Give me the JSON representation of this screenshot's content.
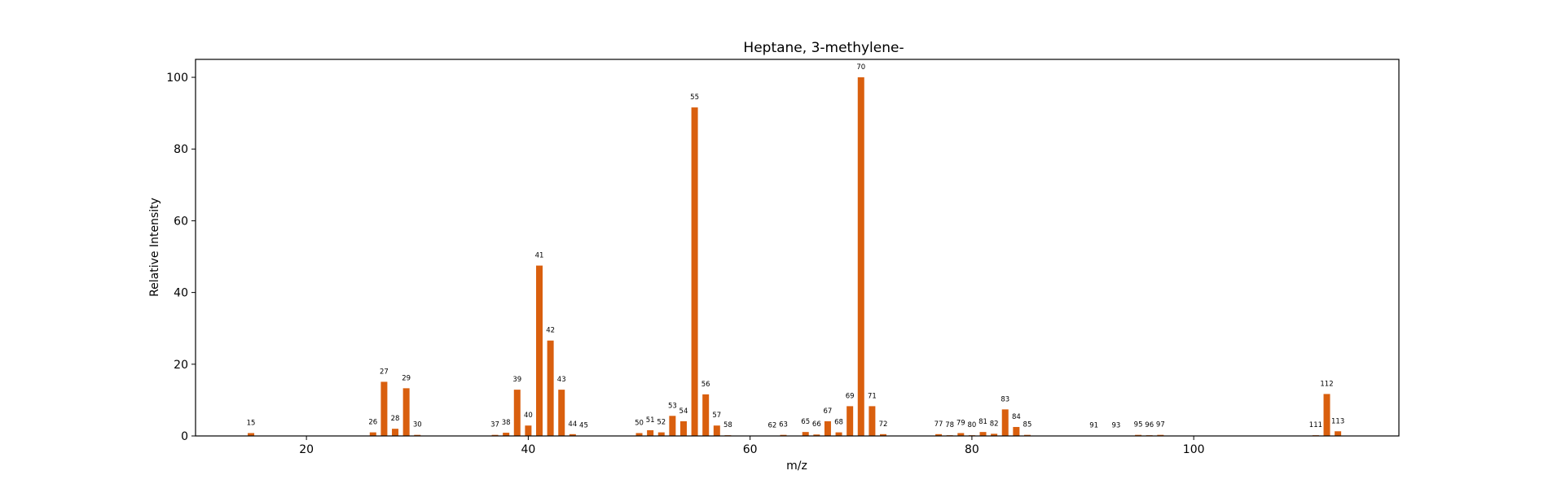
{
  "chart_data": {
    "type": "bar",
    "title": "Heptane, 3-methylene-",
    "xlabel": "m/z",
    "ylabel": "Relative Intensity",
    "xlim": [
      10,
      118.5
    ],
    "ylim": [
      0,
      105
    ],
    "xticks": [
      20,
      40,
      60,
      80,
      100
    ],
    "yticks": [
      0,
      20,
      40,
      60,
      80,
      100
    ],
    "grid": false,
    "bar_color": "#d95f0e",
    "x": [
      15,
      26,
      27,
      28,
      29,
      30,
      37,
      38,
      39,
      40,
      41,
      42,
      43,
      44,
      45,
      50,
      51,
      52,
      53,
      54,
      55,
      56,
      57,
      58,
      62,
      63,
      65,
      66,
      67,
      68,
      69,
      70,
      71,
      72,
      77,
      78,
      79,
      80,
      81,
      82,
      83,
      84,
      85,
      91,
      93,
      95,
      96,
      97,
      111,
      112,
      113
    ],
    "values": [
      0.8,
      1.0,
      15.1,
      2.0,
      13.3,
      0.3,
      0.3,
      0.9,
      12.9,
      2.9,
      47.5,
      26.6,
      12.9,
      0.5,
      0.1,
      0.8,
      1.6,
      1.0,
      5.6,
      4.1,
      91.6,
      11.6,
      2.9,
      0.2,
      0.1,
      0.3,
      1.1,
      0.4,
      4.1,
      1.0,
      8.3,
      100.0,
      8.3,
      0.5,
      0.5,
      0.2,
      0.8,
      0.2,
      1.1,
      0.6,
      7.4,
      2.5,
      0.3,
      0.1,
      0.1,
      0.3,
      0.2,
      0.3,
      0.2,
      11.7,
      1.3
    ],
    "labels": [
      "15",
      "26",
      "27",
      "28",
      "29",
      "30",
      "37",
      "38",
      "39",
      "40",
      "41",
      "42",
      "43",
      "44",
      "45",
      "50",
      "51",
      "52",
      "53",
      "54",
      "55",
      "56",
      "57",
      "58",
      "62",
      "63",
      "65",
      "66",
      "67",
      "68",
      "69",
      "70",
      "71",
      "72",
      "77",
      "78",
      "79",
      "80",
      "81",
      "82",
      "83",
      "84",
      "85",
      "91",
      "93",
      "95",
      "96",
      "97",
      "111",
      "112",
      "113"
    ]
  }
}
